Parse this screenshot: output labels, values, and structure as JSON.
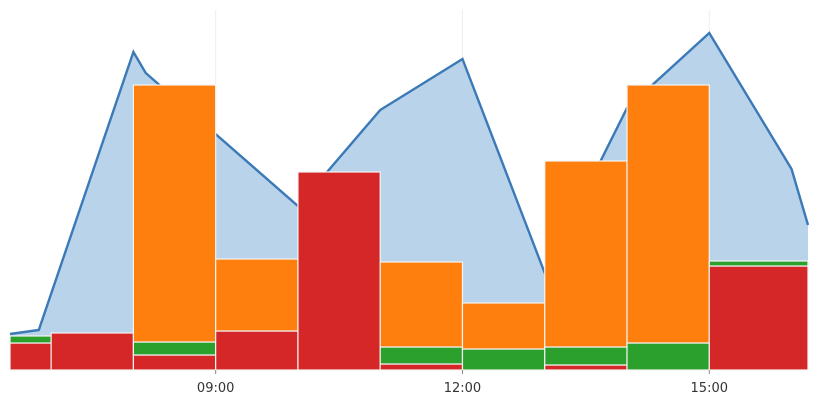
{
  "chart_data": {
    "type": "bar",
    "description_type": "stacked bars with overlaid area line",
    "x_ticks": [
      {
        "hour": 9,
        "label": "09:00"
      },
      {
        "hour": 12,
        "label": "12:00"
      },
      {
        "hour": 15,
        "label": "15:00"
      }
    ],
    "xlim": [
      6.5,
      16.2
    ],
    "ylim": [
      0,
      360
    ],
    "colors": {
      "area_fill": "#b9d3ea",
      "area_line": "#3b79b7",
      "red": "#d62728",
      "green": "#2ca02c",
      "orange": "#ff7f0e"
    },
    "area": {
      "x": [
        6.5,
        6.85,
        8.0,
        8.15,
        10.0,
        11.0,
        12.0,
        13.0,
        14.0,
        15.0,
        16.0,
        16.2
      ],
      "y": [
        36,
        40,
        318,
        297,
        164,
        260,
        311,
        97,
        262,
        337,
        201,
        145
      ]
    },
    "bars": [
      {
        "start": 6.5,
        "end": 7.0,
        "red": 27,
        "green": 7,
        "orange": 0
      },
      {
        "start": 7.0,
        "end": 8.0,
        "red": 37,
        "green": 0,
        "orange": 0
      },
      {
        "start": 8.0,
        "end": 9.0,
        "red": 15,
        "green": 13,
        "orange": 257
      },
      {
        "start": 9.0,
        "end": 10.0,
        "red": 39,
        "green": 0,
        "orange": 72
      },
      {
        "start": 10.0,
        "end": 11.0,
        "red": 198,
        "green": 0,
        "orange": 0
      },
      {
        "start": 11.0,
        "end": 12.0,
        "red": 6,
        "green": 17,
        "orange": 85
      },
      {
        "start": 12.0,
        "end": 13.0,
        "red": 0,
        "green": 21,
        "orange": 46
      },
      {
        "start": 13.0,
        "end": 14.0,
        "red": 5,
        "green": 18,
        "orange": 186
      },
      {
        "start": 14.0,
        "end": 15.0,
        "red": 0,
        "green": 27,
        "orange": 258
      },
      {
        "start": 15.0,
        "end": 16.2,
        "red": 104,
        "green": 5,
        "orange": 0
      }
    ]
  }
}
